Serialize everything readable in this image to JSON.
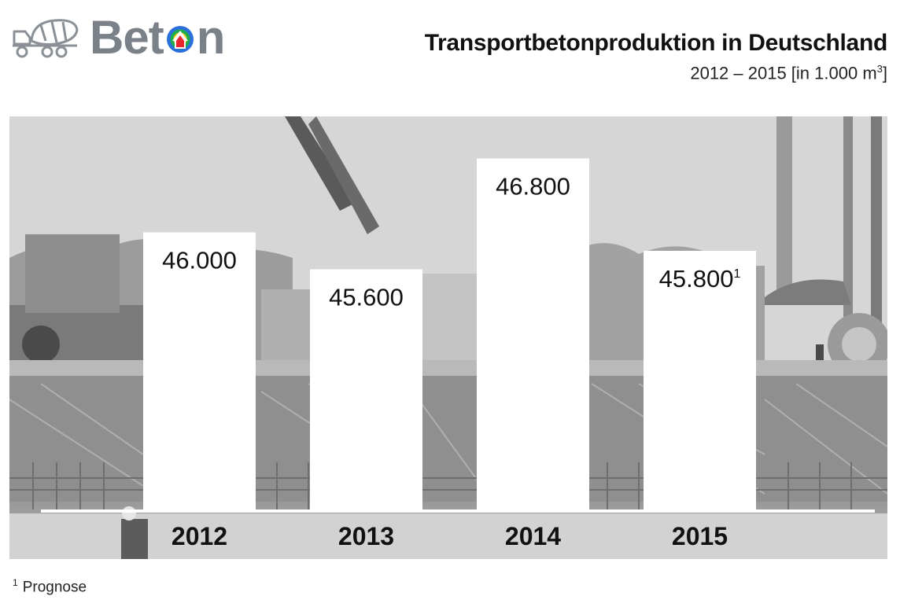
{
  "header": {
    "logo_text_a": "Bet",
    "logo_text_b": "n",
    "title": "Transportbetonproduktion in Deutschland",
    "subtitle_main": "2012 – 2015 [in 1.000 m",
    "subtitle_sup": "3",
    "subtitle_end": "]"
  },
  "chart_data": {
    "type": "bar",
    "title": "Transportbetonproduktion in Deutschland",
    "subtitle": "2012 – 2015 [in 1.000 m3]",
    "categories": [
      "2012",
      "2013",
      "2014",
      "2015"
    ],
    "values": [
      46000,
      45600,
      46800,
      45800
    ],
    "value_labels": [
      "46.000",
      "45.600",
      "46.800",
      "45.800"
    ],
    "footnote_markers": [
      "",
      "",
      "",
      "1"
    ],
    "ylim": [
      43000,
      47000
    ],
    "grid": false,
    "legend": "none"
  },
  "footnote": {
    "marker": "1",
    "text": "Prognose"
  }
}
